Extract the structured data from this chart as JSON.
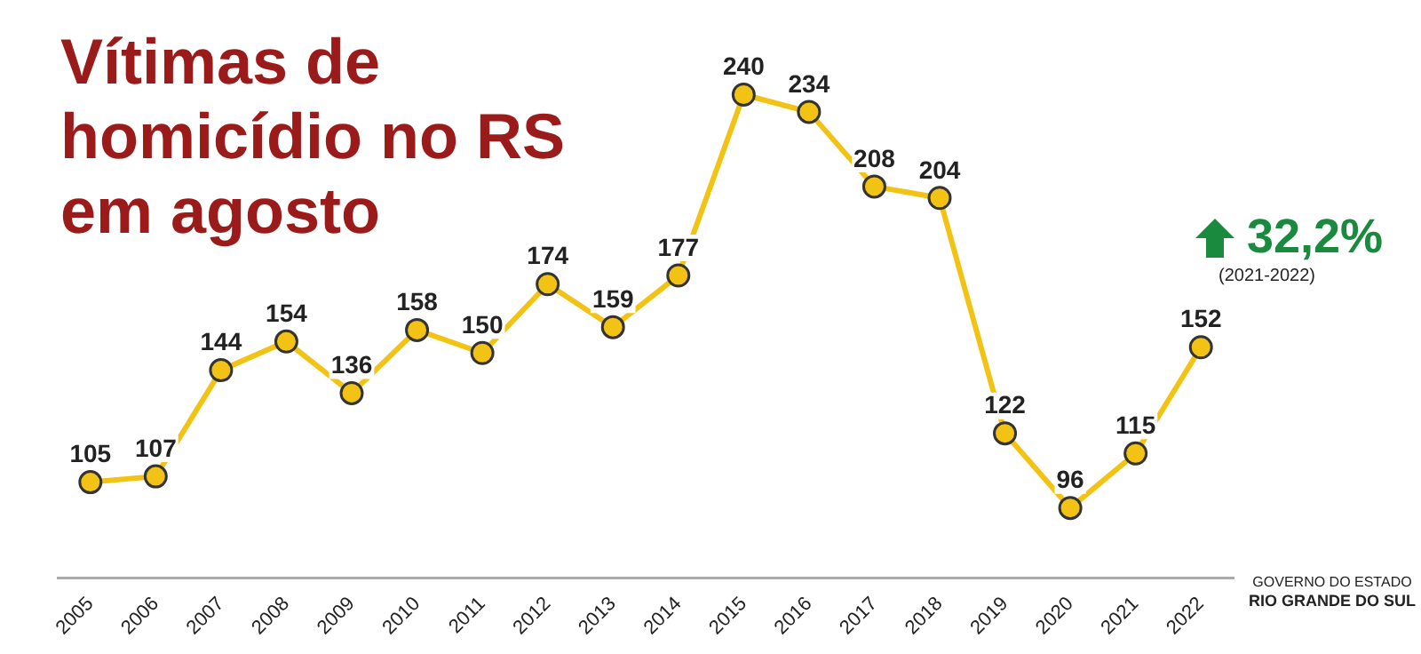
{
  "chart_data": {
    "type": "line",
    "title": "Vítimas de homicídio no RS em agosto",
    "categories": [
      "2005",
      "2006",
      "2007",
      "2008",
      "2009",
      "2010",
      "2011",
      "2012",
      "2013",
      "2014",
      "2015",
      "2016",
      "2017",
      "2018",
      "2019",
      "2020",
      "2021",
      "2022"
    ],
    "series": [
      {
        "color": "#f2c314",
        "values": [
          105,
          107,
          144,
          154,
          136,
          158,
          150,
          174,
          159,
          177,
          240,
          234,
          208,
          204,
          122,
          96,
          115,
          152
        ]
      }
    ],
    "data_labels": true,
    "grid": false,
    "legend": false,
    "marker": "circle",
    "annotations": [
      "32,2%",
      "(2021-2022)",
      "GOVERNO DO ESTADO",
      "RIO GRANDE DO SUL"
    ]
  }
}
